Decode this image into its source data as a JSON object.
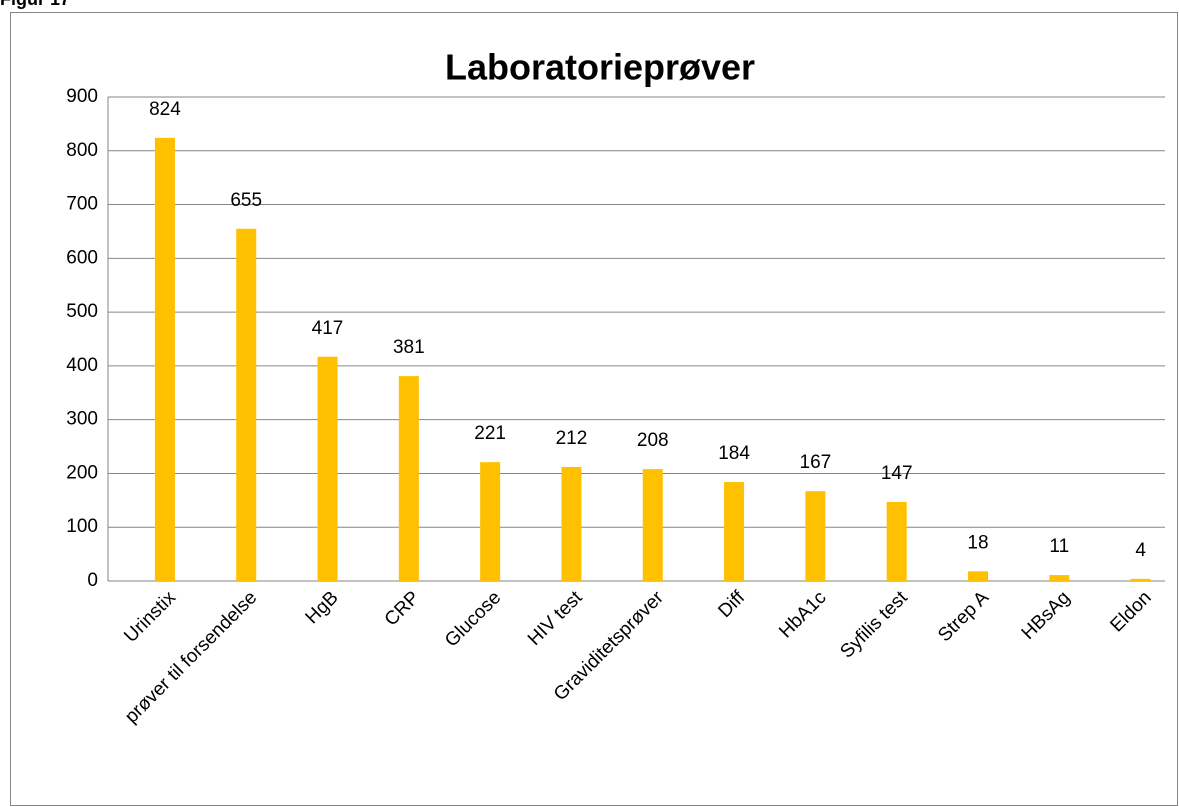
{
  "figure_label": "Figur 17",
  "chart_data": {
    "type": "bar",
    "title": "Laboratorieprøver",
    "categories": [
      "Urinstix",
      "prøver til forsendelse",
      "HgB",
      "CRP",
      "Glucose",
      "HIV test",
      "Graviditetsprøver",
      "Diff",
      "HbA1c",
      "Syfilis test",
      "Strep A",
      "HBsAg",
      "Eldon"
    ],
    "values": [
      824,
      655,
      417,
      381,
      221,
      212,
      208,
      184,
      167,
      147,
      18,
      11,
      4
    ],
    "color": "#ffc000",
    "ylim": [
      0,
      900
    ],
    "yticks": [
      0,
      100,
      200,
      300,
      400,
      500,
      600,
      700,
      800,
      900
    ],
    "grid": true
  }
}
